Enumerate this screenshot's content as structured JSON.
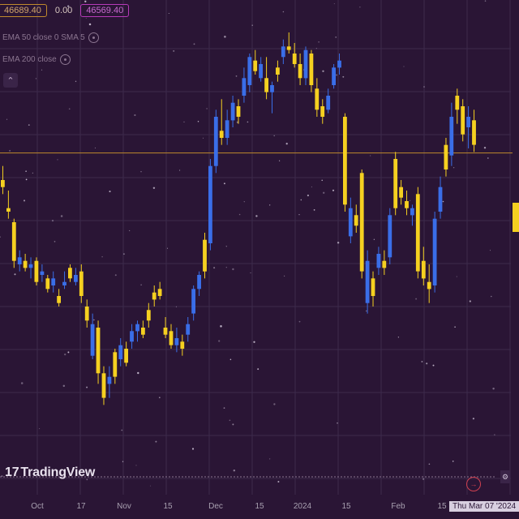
{
  "legend": {
    "open_value": "46689.40",
    "change_value": "0.00",
    "close_value": "46569.40",
    "indicator_1": "EMA 50 close 0 SMA 5",
    "indicator_2": "EMA 200 close"
  },
  "logo_text": "TradingView",
  "logo_mark": "17",
  "x_axis": {
    "labels": [
      "Oct",
      "17",
      "Nov",
      "15",
      "Dec",
      "15",
      "2024",
      "15",
      "Feb",
      "15"
    ],
    "crosshair_date": "Thu Mar 07 '2024"
  },
  "colors": {
    "background": "#2a1535",
    "up_candle": "#f5d020",
    "down_candle": "#3a6ee8",
    "price_line": "#c08a2c",
    "grid": "#3d2a4c"
  },
  "icons": {
    "collapse": "chevron-up-icon",
    "visibility": "eye-icon",
    "scroll_to_latest": "arrow-right-icon",
    "settings": "gear-icon"
  },
  "chart_data": {
    "type": "candlestick",
    "title": "",
    "xlabel": "",
    "ylabel": "",
    "ylim": [
      38000,
      50000
    ],
    "grid": true,
    "last_price_line": 46569.4,
    "candles": [
      {
        "o": 45800,
        "h": 46200,
        "l": 45400,
        "c": 45600,
        "up": true
      },
      {
        "o": 45000,
        "h": 45500,
        "l": 44700,
        "c": 44900,
        "up": true
      },
      {
        "o": 44600,
        "h": 44700,
        "l": 43300,
        "c": 43500,
        "up": true
      },
      {
        "o": 43600,
        "h": 43800,
        "l": 43200,
        "c": 43400,
        "up": false
      },
      {
        "o": 43500,
        "h": 43700,
        "l": 43200,
        "c": 43300,
        "up": true
      },
      {
        "o": 43300,
        "h": 43600,
        "l": 43000,
        "c": 43400,
        "up": false
      },
      {
        "o": 43500,
        "h": 43600,
        "l": 42800,
        "c": 42900,
        "up": true
      },
      {
        "o": 43100,
        "h": 43400,
        "l": 42900,
        "c": 43200,
        "up": false
      },
      {
        "o": 43000,
        "h": 43100,
        "l": 42600,
        "c": 42700,
        "up": true
      },
      {
        "o": 42800,
        "h": 43200,
        "l": 42600,
        "c": 43000,
        "up": false
      },
      {
        "o": 42500,
        "h": 42700,
        "l": 42200,
        "c": 42300,
        "up": true
      },
      {
        "o": 42900,
        "h": 43200,
        "l": 42700,
        "c": 42800,
        "up": false
      },
      {
        "o": 43000,
        "h": 43400,
        "l": 42900,
        "c": 43300,
        "up": true
      },
      {
        "o": 43100,
        "h": 43300,
        "l": 42800,
        "c": 42900,
        "up": false
      },
      {
        "o": 43200,
        "h": 43400,
        "l": 42300,
        "c": 42500,
        "up": true
      },
      {
        "o": 42200,
        "h": 42400,
        "l": 41600,
        "c": 41800,
        "up": true
      },
      {
        "o": 41700,
        "h": 42000,
        "l": 40700,
        "c": 40800,
        "up": false
      },
      {
        "o": 41600,
        "h": 41800,
        "l": 40000,
        "c": 40300,
        "up": true
      },
      {
        "o": 40300,
        "h": 40500,
        "l": 39400,
        "c": 39600,
        "up": true
      },
      {
        "o": 40000,
        "h": 40500,
        "l": 39600,
        "c": 40200,
        "up": false
      },
      {
        "o": 40200,
        "h": 41000,
        "l": 40000,
        "c": 40900,
        "up": true
      },
      {
        "o": 40700,
        "h": 41300,
        "l": 40500,
        "c": 41100,
        "up": false
      },
      {
        "o": 41000,
        "h": 41200,
        "l": 40500,
        "c": 40600,
        "up": true
      },
      {
        "o": 41200,
        "h": 41700,
        "l": 41000,
        "c": 41500,
        "up": false
      },
      {
        "o": 41500,
        "h": 41800,
        "l": 41200,
        "c": 41700,
        "up": false
      },
      {
        "o": 41600,
        "h": 41800,
        "l": 41300,
        "c": 41400,
        "up": true
      },
      {
        "o": 41800,
        "h": 42300,
        "l": 41600,
        "c": 42100,
        "up": true
      },
      {
        "o": 42400,
        "h": 42800,
        "l": 42200,
        "c": 42600,
        "up": true
      },
      {
        "o": 42700,
        "h": 42900,
        "l": 42400,
        "c": 42500,
        "up": true
      },
      {
        "o": 41600,
        "h": 41900,
        "l": 41300,
        "c": 41400,
        "up": true
      },
      {
        "o": 41500,
        "h": 41700,
        "l": 41000,
        "c": 41100,
        "up": true
      },
      {
        "o": 41300,
        "h": 41600,
        "l": 40900,
        "c": 41100,
        "up": false
      },
      {
        "o": 41000,
        "h": 41400,
        "l": 40800,
        "c": 41200,
        "up": true
      },
      {
        "o": 41400,
        "h": 41900,
        "l": 41200,
        "c": 41700,
        "up": false
      },
      {
        "o": 42000,
        "h": 42800,
        "l": 41800,
        "c": 42700,
        "up": false
      },
      {
        "o": 42700,
        "h": 43200,
        "l": 42500,
        "c": 43100,
        "up": false
      },
      {
        "o": 43200,
        "h": 44300,
        "l": 43000,
        "c": 44100,
        "up": true
      },
      {
        "o": 44000,
        "h": 46400,
        "l": 43800,
        "c": 46200,
        "up": false
      },
      {
        "o": 46200,
        "h": 47800,
        "l": 46000,
        "c": 47600,
        "up": false
      },
      {
        "o": 47200,
        "h": 48100,
        "l": 46800,
        "c": 47000,
        "up": true
      },
      {
        "o": 47000,
        "h": 47800,
        "l": 46800,
        "c": 47500,
        "up": false
      },
      {
        "o": 47500,
        "h": 48200,
        "l": 47300,
        "c": 48000,
        "up": false
      },
      {
        "o": 47900,
        "h": 48100,
        "l": 47400,
        "c": 47600,
        "up": true
      },
      {
        "o": 48200,
        "h": 49000,
        "l": 48000,
        "c": 48700,
        "up": false
      },
      {
        "o": 48500,
        "h": 49400,
        "l": 48300,
        "c": 49300,
        "up": false
      },
      {
        "o": 49200,
        "h": 49500,
        "l": 48800,
        "c": 48900,
        "up": true
      },
      {
        "o": 49100,
        "h": 49300,
        "l": 48600,
        "c": 48700,
        "up": false
      },
      {
        "o": 48700,
        "h": 49300,
        "l": 48100,
        "c": 48300,
        "up": true
      },
      {
        "o": 48300,
        "h": 48600,
        "l": 47700,
        "c": 48500,
        "up": false
      },
      {
        "o": 48800,
        "h": 49200,
        "l": 48600,
        "c": 49000,
        "up": true
      },
      {
        "o": 49300,
        "h": 49800,
        "l": 49100,
        "c": 49600,
        "up": false
      },
      {
        "o": 49600,
        "h": 50000,
        "l": 49400,
        "c": 49500,
        "up": true
      },
      {
        "o": 49400,
        "h": 49700,
        "l": 49000,
        "c": 49100,
        "up": true
      },
      {
        "o": 49100,
        "h": 49400,
        "l": 48500,
        "c": 48700,
        "up": true
      },
      {
        "o": 48700,
        "h": 49600,
        "l": 48500,
        "c": 49500,
        "up": false
      },
      {
        "o": 49400,
        "h": 49500,
        "l": 48300,
        "c": 48500,
        "up": true
      },
      {
        "o": 48400,
        "h": 48700,
        "l": 47600,
        "c": 47800,
        "up": true
      },
      {
        "o": 47900,
        "h": 48100,
        "l": 47400,
        "c": 47600,
        "up": true
      },
      {
        "o": 47800,
        "h": 48400,
        "l": 47700,
        "c": 48200,
        "up": false
      },
      {
        "o": 48500,
        "h": 49100,
        "l": 48400,
        "c": 49000,
        "up": false
      },
      {
        "o": 49000,
        "h": 49400,
        "l": 48800,
        "c": 49200,
        "up": false
      },
      {
        "o": 47600,
        "h": 47700,
        "l": 44900,
        "c": 45100,
        "up": true
      },
      {
        "o": 45000,
        "h": 45300,
        "l": 44000,
        "c": 44200,
        "up": false
      },
      {
        "o": 44800,
        "h": 45100,
        "l": 44300,
        "c": 44500,
        "up": true
      },
      {
        "o": 46000,
        "h": 46100,
        "l": 43000,
        "c": 43200,
        "up": true
      },
      {
        "o": 43500,
        "h": 43800,
        "l": 42000,
        "c": 42300,
        "up": false
      },
      {
        "o": 43000,
        "h": 43200,
        "l": 42200,
        "c": 42500,
        "up": true
      },
      {
        "o": 43300,
        "h": 43900,
        "l": 43100,
        "c": 43700,
        "up": false
      },
      {
        "o": 43500,
        "h": 43800,
        "l": 43100,
        "c": 43300,
        "up": true
      },
      {
        "o": 43600,
        "h": 45000,
        "l": 43400,
        "c": 44800,
        "up": false
      },
      {
        "o": 45000,
        "h": 46600,
        "l": 44800,
        "c": 46400,
        "up": true
      },
      {
        "o": 45600,
        "h": 45800,
        "l": 45100,
        "c": 45300,
        "up": true
      },
      {
        "o": 45200,
        "h": 45500,
        "l": 44800,
        "c": 45000,
        "up": true
      },
      {
        "o": 44800,
        "h": 45100,
        "l": 44500,
        "c": 45000,
        "up": false
      },
      {
        "o": 45400,
        "h": 45600,
        "l": 43000,
        "c": 43200,
        "up": true
      },
      {
        "o": 43500,
        "h": 43900,
        "l": 42800,
        "c": 43000,
        "up": true
      },
      {
        "o": 42900,
        "h": 43400,
        "l": 42300,
        "c": 42700,
        "up": true
      },
      {
        "o": 42800,
        "h": 44900,
        "l": 42600,
        "c": 44700,
        "up": false
      },
      {
        "o": 44900,
        "h": 45900,
        "l": 44700,
        "c": 45600,
        "up": false
      },
      {
        "o": 46100,
        "h": 47000,
        "l": 45900,
        "c": 46800,
        "up": true
      },
      {
        "o": 46500,
        "h": 48000,
        "l": 46200,
        "c": 47600,
        "up": false
      },
      {
        "o": 47800,
        "h": 48400,
        "l": 47400,
        "c": 48200,
        "up": true
      },
      {
        "o": 47900,
        "h": 48100,
        "l": 46900,
        "c": 47100,
        "up": true
      },
      {
        "o": 47300,
        "h": 47900,
        "l": 46700,
        "c": 47600,
        "up": false
      },
      {
        "o": 47500,
        "h": 47800,
        "l": 46600,
        "c": 46800,
        "up": true
      }
    ]
  }
}
